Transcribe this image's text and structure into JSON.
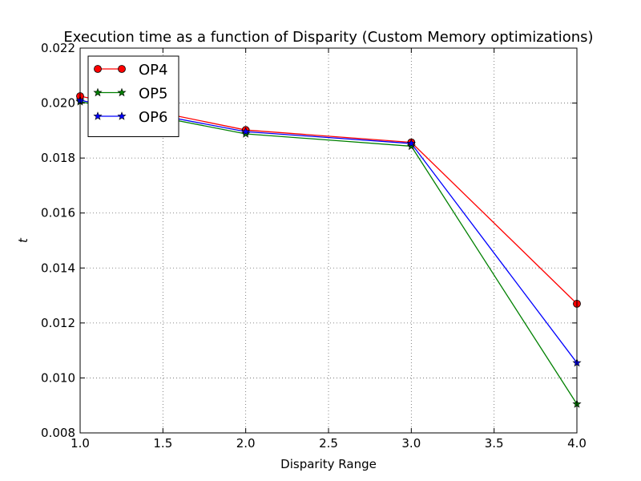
{
  "chart_data": {
    "type": "line",
    "title": "Execution time as a function of Disparity (Custom Memory optimizations)",
    "xlabel": "Disparity Range",
    "ylabel": "t",
    "xlim": [
      1.0,
      4.0
    ],
    "ylim": [
      0.008,
      0.022
    ],
    "xticks": [
      "1.0",
      "1.5",
      "2.0",
      "2.5",
      "3.0",
      "3.5",
      "4.0"
    ],
    "yticks": [
      "0.008",
      "0.010",
      "0.012",
      "0.014",
      "0.016",
      "0.018",
      "0.020",
      "0.022"
    ],
    "grid": true,
    "legend_position": "top-left",
    "x": [
      1.0,
      2.0,
      3.0,
      4.0
    ],
    "series": [
      {
        "name": "OP4",
        "values": [
          0.02025,
          0.01902,
          0.01857,
          0.0127
        ],
        "color": "#ff0000",
        "marker": "circle"
      },
      {
        "name": "OP5",
        "values": [
          0.02005,
          0.01888,
          0.01843,
          0.00905
        ],
        "color": "#008000",
        "marker": "star"
      },
      {
        "name": "OP6",
        "values": [
          0.0201,
          0.01896,
          0.01853,
          0.01055
        ],
        "color": "#0000ff",
        "marker": "star"
      }
    ]
  }
}
